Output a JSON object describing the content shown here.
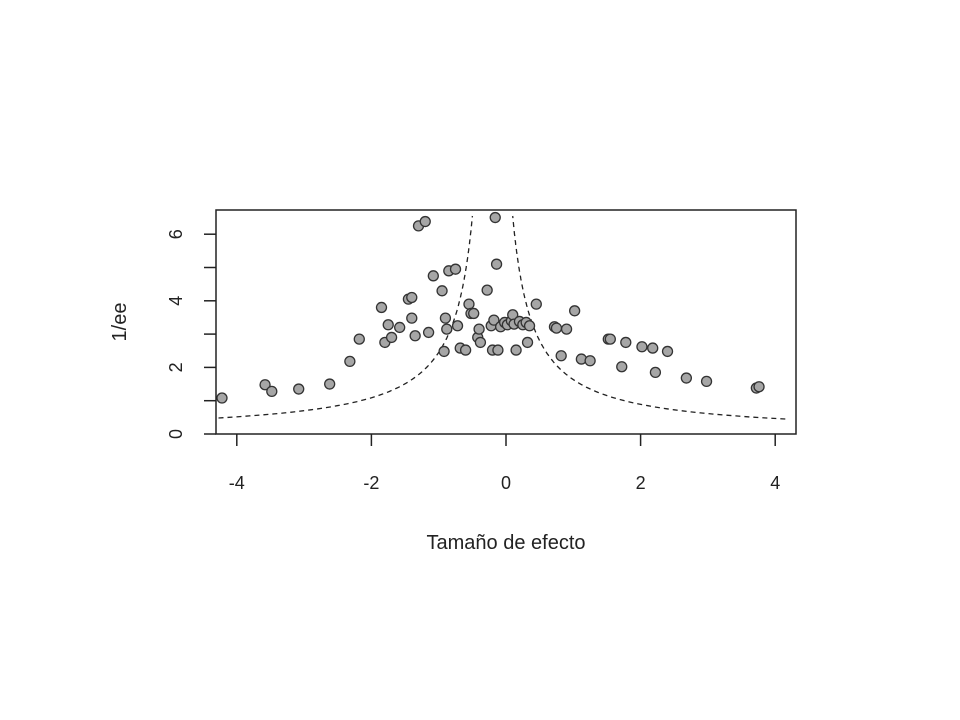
{
  "chart_data": {
    "type": "scatter",
    "title": "",
    "xlabel": "Tamaño de efecto",
    "ylabel": "1/ee",
    "xlim": [
      -4.3,
      4.3
    ],
    "ylim": [
      0,
      6.8
    ],
    "x_ticks": [
      -4,
      -2,
      0,
      2,
      4
    ],
    "x_tick_labels": [
      "-4",
      "-2",
      "0",
      "2",
      "4"
    ],
    "y_ticks": [
      0,
      1,
      2,
      3,
      4,
      5,
      6
    ],
    "y_tick_labels": [
      "0",
      "",
      "2",
      "",
      "4",
      "",
      "6"
    ],
    "grid": false,
    "legend": null,
    "point_style": {
      "fill": "#a6a6a6",
      "stroke": "#333333",
      "radius": 5
    },
    "funnel": {
      "description": "Dashed pseudo-confidence funnel (1.96 SE) around pooled estimate",
      "center": -0.2,
      "style": "dashed",
      "color": "#222222"
    },
    "points": [
      {
        "x": -4.22,
        "y": 1.08
      },
      {
        "x": -3.58,
        "y": 1.48
      },
      {
        "x": -3.48,
        "y": 1.28
      },
      {
        "x": -3.08,
        "y": 1.35
      },
      {
        "x": -2.62,
        "y": 1.5
      },
      {
        "x": -2.32,
        "y": 2.18
      },
      {
        "x": -2.18,
        "y": 2.85
      },
      {
        "x": -1.85,
        "y": 3.8
      },
      {
        "x": -1.8,
        "y": 2.75
      },
      {
        "x": -1.75,
        "y": 3.28
      },
      {
        "x": -1.7,
        "y": 2.9
      },
      {
        "x": -1.58,
        "y": 3.2
      },
      {
        "x": -1.45,
        "y": 4.05
      },
      {
        "x": -1.4,
        "y": 4.1
      },
      {
        "x": -1.4,
        "y": 3.48
      },
      {
        "x": -1.35,
        "y": 2.95
      },
      {
        "x": -1.3,
        "y": 6.25
      },
      {
        "x": -1.2,
        "y": 6.38
      },
      {
        "x": -1.15,
        "y": 3.05
      },
      {
        "x": -1.08,
        "y": 4.75
      },
      {
        "x": -0.95,
        "y": 4.3
      },
      {
        "x": -0.92,
        "y": 2.48
      },
      {
        "x": -0.9,
        "y": 3.48
      },
      {
        "x": -0.88,
        "y": 3.15
      },
      {
        "x": -0.85,
        "y": 4.9
      },
      {
        "x": -0.75,
        "y": 4.95
      },
      {
        "x": -0.72,
        "y": 3.25
      },
      {
        "x": -0.68,
        "y": 2.58
      },
      {
        "x": -0.6,
        "y": 2.52
      },
      {
        "x": -0.55,
        "y": 3.9
      },
      {
        "x": -0.52,
        "y": 3.62
      },
      {
        "x": -0.48,
        "y": 3.62
      },
      {
        "x": -0.42,
        "y": 2.9
      },
      {
        "x": -0.4,
        "y": 3.15
      },
      {
        "x": -0.38,
        "y": 2.75
      },
      {
        "x": -0.28,
        "y": 4.32
      },
      {
        "x": -0.22,
        "y": 3.25
      },
      {
        "x": -0.2,
        "y": 2.52
      },
      {
        "x": -0.18,
        "y": 3.42
      },
      {
        "x": -0.16,
        "y": 6.5
      },
      {
        "x": -0.14,
        "y": 5.1
      },
      {
        "x": -0.12,
        "y": 2.52
      },
      {
        "x": -0.08,
        "y": 3.22
      },
      {
        "x": -0.02,
        "y": 3.35
      },
      {
        "x": 0.02,
        "y": 3.28
      },
      {
        "x": 0.08,
        "y": 3.4
      },
      {
        "x": 0.1,
        "y": 3.58
      },
      {
        "x": 0.12,
        "y": 3.3
      },
      {
        "x": 0.15,
        "y": 2.52
      },
      {
        "x": 0.2,
        "y": 3.38
      },
      {
        "x": 0.25,
        "y": 3.28
      },
      {
        "x": 0.3,
        "y": 3.35
      },
      {
        "x": 0.32,
        "y": 2.75
      },
      {
        "x": 0.35,
        "y": 3.25
      },
      {
        "x": 0.45,
        "y": 3.9
      },
      {
        "x": 0.72,
        "y": 3.22
      },
      {
        "x": 0.75,
        "y": 3.18
      },
      {
        "x": 0.82,
        "y": 2.35
      },
      {
        "x": 0.9,
        "y": 3.15
      },
      {
        "x": 1.02,
        "y": 3.7
      },
      {
        "x": 1.12,
        "y": 2.25
      },
      {
        "x": 1.25,
        "y": 2.2
      },
      {
        "x": 1.52,
        "y": 2.85
      },
      {
        "x": 1.55,
        "y": 2.85
      },
      {
        "x": 1.72,
        "y": 2.02
      },
      {
        "x": 1.78,
        "y": 2.75
      },
      {
        "x": 2.02,
        "y": 2.62
      },
      {
        "x": 2.18,
        "y": 2.58
      },
      {
        "x": 2.22,
        "y": 1.85
      },
      {
        "x": 2.4,
        "y": 2.48
      },
      {
        "x": 2.68,
        "y": 1.68
      },
      {
        "x": 2.98,
        "y": 1.58
      },
      {
        "x": 3.72,
        "y": 1.38
      },
      {
        "x": 3.76,
        "y": 1.42
      }
    ]
  }
}
